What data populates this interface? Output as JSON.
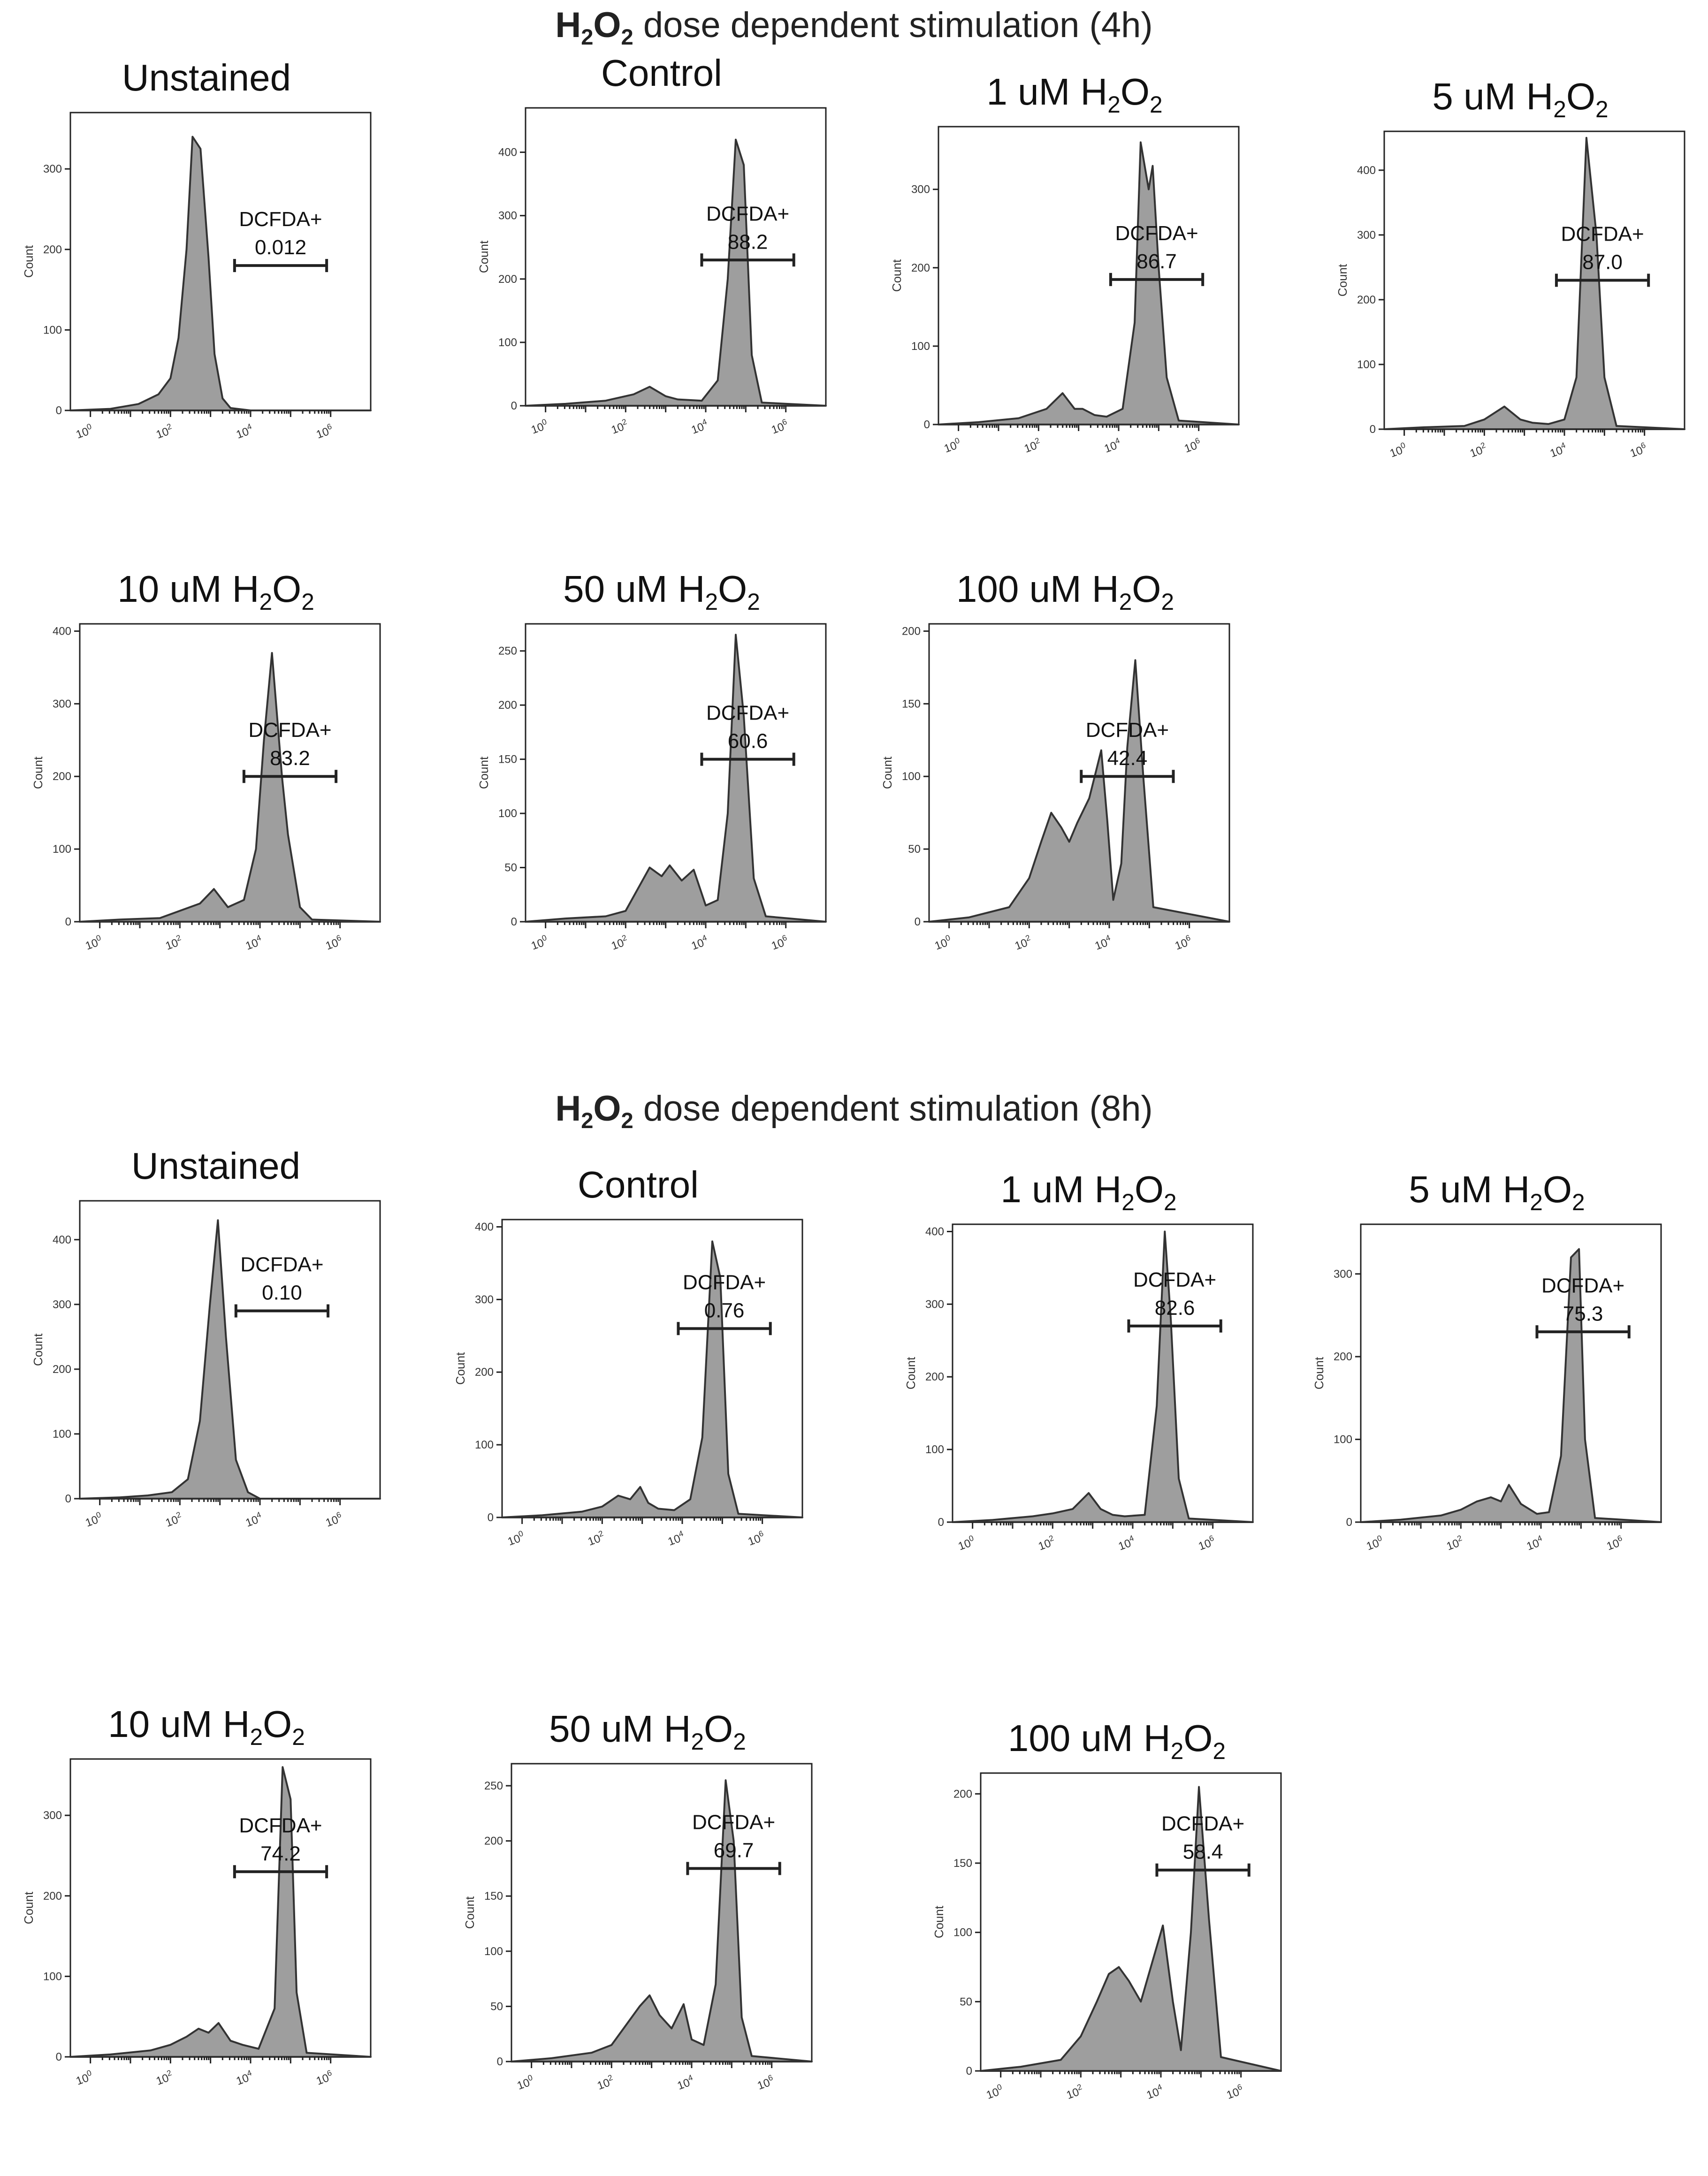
{
  "figure": {
    "sections": [
      {
        "chem_base": "H",
        "chem_sub1": "2",
        "chem_mid": "O",
        "chem_sub2": "2",
        "text": " dose dependent stimulation (4h)"
      },
      {
        "chem_base": "H",
        "chem_sub1": "2",
        "chem_mid": "O",
        "chem_sub2": "2",
        "text": " dose dependent stimulation (8h)"
      }
    ]
  },
  "chart_data": [
    {
      "type": "area",
      "title": "Unstained",
      "section": 0,
      "ylabel": "Count",
      "ylim": [
        0,
        370
      ],
      "yticks": [
        0,
        100,
        200,
        300
      ],
      "xlim": [
        -0.5,
        7
      ],
      "xticks": [
        0,
        2,
        4,
        6
      ],
      "xtick_base": "10",
      "gate": {
        "label": "DCFDA+",
        "value": "0.012",
        "from": 3.6,
        "to": 5.9,
        "level": 180
      },
      "x": [
        -0.5,
        0.5,
        1.2,
        1.7,
        2.0,
        2.2,
        2.4,
        2.55,
        2.75,
        2.95,
        3.1,
        3.3,
        3.5,
        4.0,
        7.0
      ],
      "y": [
        0,
        2,
        8,
        20,
        40,
        90,
        200,
        340,
        325,
        190,
        70,
        15,
        3,
        0,
        0
      ]
    },
    {
      "type": "area",
      "title": "Control",
      "section": 0,
      "ylabel": "Count",
      "ylim": [
        0,
        470
      ],
      "yticks": [
        0,
        100,
        200,
        300,
        400
      ],
      "xlim": [
        -0.5,
        7
      ],
      "xticks": [
        0,
        2,
        4,
        6
      ],
      "xtick_base": "10",
      "gate": {
        "label": "DCFDA+",
        "value": "88.2",
        "from": 3.9,
        "to": 6.2,
        "level": 230
      },
      "x": [
        -0.5,
        0.5,
        1.5,
        2.2,
        2.6,
        3.0,
        3.3,
        3.9,
        4.3,
        4.55,
        4.75,
        4.95,
        5.15,
        5.4,
        7.0
      ],
      "y": [
        0,
        3,
        8,
        18,
        30,
        15,
        10,
        8,
        40,
        200,
        420,
        380,
        80,
        5,
        0
      ]
    },
    {
      "type": "area",
      "title": "1 uM",
      "title_chem": true,
      "section": 0,
      "ylabel": "Count",
      "ylim": [
        0,
        380
      ],
      "yticks": [
        0,
        100,
        200,
        300
      ],
      "xlim": [
        -0.5,
        7
      ],
      "xticks": [
        0,
        2,
        4,
        6
      ],
      "xtick_base": "10",
      "gate": {
        "label": "DCFDA+",
        "value": "86.7",
        "from": 3.8,
        "to": 6.1,
        "level": 185
      },
      "x": [
        -0.5,
        0.5,
        1.5,
        2.2,
        2.6,
        2.9,
        3.1,
        3.4,
        3.7,
        4.1,
        4.4,
        4.55,
        4.75,
        4.85,
        5.0,
        5.2,
        5.5,
        7.0
      ],
      "y": [
        0,
        3,
        8,
        20,
        40,
        20,
        20,
        12,
        10,
        20,
        130,
        360,
        300,
        330,
        200,
        60,
        5,
        0
      ]
    },
    {
      "type": "area",
      "title": "5 uM",
      "title_chem": true,
      "section": 0,
      "ylabel": "Count",
      "ylim": [
        0,
        460
      ],
      "yticks": [
        0,
        100,
        200,
        300,
        400
      ],
      "xlim": [
        -0.5,
        7
      ],
      "xticks": [
        0,
        2,
        4,
        6
      ],
      "xtick_base": "10",
      "gate": {
        "label": "DCFDA+",
        "value": "87.0",
        "from": 3.8,
        "to": 6.1,
        "level": 230
      },
      "x": [
        -0.5,
        0.5,
        1.5,
        2.0,
        2.5,
        2.9,
        3.2,
        3.6,
        4.0,
        4.3,
        4.55,
        4.8,
        5.0,
        5.3,
        7.0
      ],
      "y": [
        0,
        3,
        5,
        15,
        35,
        15,
        10,
        8,
        15,
        80,
        450,
        300,
        80,
        5,
        0
      ]
    },
    {
      "type": "area",
      "title": "10 uM",
      "title_chem": true,
      "section": 0,
      "ylabel": "Count",
      "ylim": [
        0,
        410
      ],
      "yticks": [
        0,
        100,
        200,
        300,
        400
      ],
      "xlim": [
        -0.5,
        7
      ],
      "xticks": [
        0,
        2,
        4,
        6
      ],
      "xtick_base": "10",
      "gate": {
        "label": "DCFDA+",
        "value": "83.2",
        "from": 3.6,
        "to": 5.9,
        "level": 200
      },
      "x": [
        -0.5,
        0.5,
        1.5,
        2.0,
        2.5,
        2.85,
        3.2,
        3.6,
        3.9,
        4.1,
        4.3,
        4.55,
        4.7,
        5.0,
        5.3,
        7.0
      ],
      "y": [
        0,
        3,
        5,
        15,
        25,
        45,
        20,
        30,
        100,
        250,
        370,
        200,
        120,
        20,
        3,
        0
      ]
    },
    {
      "type": "area",
      "title": "50 uM",
      "title_chem": true,
      "section": 0,
      "ylabel": "Count",
      "ylim": [
        0,
        275
      ],
      "yticks": [
        0,
        50,
        100,
        150,
        200,
        250
      ],
      "xlim": [
        -0.5,
        7
      ],
      "xticks": [
        0,
        2,
        4,
        6
      ],
      "xtick_base": "10",
      "gate": {
        "label": "DCFDA+",
        "value": "60.6",
        "from": 3.9,
        "to": 6.2,
        "level": 150
      },
      "x": [
        -0.5,
        0.5,
        1.5,
        2.0,
        2.3,
        2.6,
        2.9,
        3.1,
        3.4,
        3.7,
        4.0,
        4.3,
        4.55,
        4.75,
        4.95,
        5.2,
        5.5,
        7.0
      ],
      "y": [
        0,
        3,
        5,
        10,
        30,
        50,
        42,
        52,
        38,
        48,
        15,
        20,
        100,
        265,
        190,
        40,
        5,
        0
      ]
    },
    {
      "type": "area",
      "title": "100 uM",
      "title_chem": true,
      "section": 0,
      "ylabel": "Count",
      "ylim": [
        0,
        205
      ],
      "yticks": [
        0,
        50,
        100,
        150,
        200
      ],
      "xlim": [
        -0.5,
        7
      ],
      "xticks": [
        0,
        2,
        4,
        6
      ],
      "xtick_base": "10",
      "gate": {
        "label": "DCFDA+",
        "value": "42.4",
        "from": 3.3,
        "to": 5.6,
        "level": 100
      },
      "x": [
        -0.5,
        0.5,
        1.5,
        2.0,
        2.3,
        2.55,
        2.8,
        3.0,
        3.2,
        3.5,
        3.8,
        3.95,
        4.1,
        4.3,
        4.45,
        4.65,
        4.85,
        5.1,
        7.0
      ],
      "y": [
        0,
        3,
        10,
        30,
        55,
        75,
        65,
        55,
        68,
        85,
        118,
        70,
        15,
        40,
        120,
        180,
        100,
        10,
        0
      ]
    },
    {
      "type": "area",
      "title": "Unstained",
      "section": 1,
      "ylabel": "Count",
      "ylim": [
        0,
        460
      ],
      "yticks": [
        0,
        100,
        200,
        300,
        400
      ],
      "xlim": [
        -0.5,
        7
      ],
      "xticks": [
        0,
        2,
        4,
        6
      ],
      "xtick_base": "10",
      "gate": {
        "label": "DCFDA+",
        "value": "0.10",
        "from": 3.4,
        "to": 5.7,
        "level": 290
      },
      "x": [
        -0.5,
        0.5,
        1.2,
        1.8,
        2.2,
        2.5,
        2.75,
        2.95,
        3.15,
        3.4,
        3.7,
        4.0,
        7.0
      ],
      "y": [
        0,
        2,
        5,
        10,
        30,
        120,
        300,
        430,
        250,
        60,
        10,
        0,
        0
      ]
    },
    {
      "type": "area",
      "title": "Control",
      "section": 1,
      "ylabel": "Count",
      "ylim": [
        0,
        410
      ],
      "yticks": [
        0,
        100,
        200,
        300,
        400
      ],
      "xlim": [
        -0.5,
        7
      ],
      "xticks": [
        0,
        2,
        4,
        6
      ],
      "xtick_base": "10",
      "gate": {
        "label": "DCFDA+",
        "value": "0.76",
        "from": 3.9,
        "to": 6.2,
        "level": 260
      },
      "x": [
        -0.5,
        0.5,
        1.5,
        2.0,
        2.4,
        2.7,
        2.95,
        3.15,
        3.4,
        3.8,
        4.2,
        4.5,
        4.75,
        4.95,
        5.15,
        5.4,
        7.0
      ],
      "y": [
        0,
        3,
        8,
        15,
        30,
        25,
        42,
        20,
        12,
        10,
        25,
        110,
        380,
        330,
        60,
        5,
        0
      ]
    },
    {
      "type": "area",
      "title": "1 uM",
      "title_chem": true,
      "section": 1,
      "ylabel": "Count",
      "ylim": [
        0,
        410
      ],
      "yticks": [
        0,
        100,
        200,
        300,
        400
      ],
      "xlim": [
        -0.5,
        7
      ],
      "xticks": [
        0,
        2,
        4,
        6
      ],
      "xtick_base": "10",
      "gate": {
        "label": "DCFDA+",
        "value": "82.6",
        "from": 3.9,
        "to": 6.2,
        "level": 270
      },
      "x": [
        -0.5,
        0.5,
        1.5,
        2.0,
        2.5,
        2.9,
        3.2,
        3.5,
        3.8,
        4.3,
        4.6,
        4.8,
        4.95,
        5.15,
        5.4,
        7.0
      ],
      "y": [
        0,
        3,
        8,
        12,
        18,
        40,
        18,
        10,
        8,
        10,
        160,
        400,
        280,
        60,
        5,
        0
      ]
    },
    {
      "type": "area",
      "title": "5 uM",
      "title_chem": true,
      "section": 1,
      "ylabel": "Count",
      "ylim": [
        0,
        360
      ],
      "yticks": [
        0,
        100,
        200,
        300
      ],
      "xlim": [
        -0.5,
        7
      ],
      "xticks": [
        0,
        2,
        4,
        6
      ],
      "xtick_base": "10",
      "gate": {
        "label": "DCFDA+",
        "value": "75.3",
        "from": 3.9,
        "to": 6.2,
        "level": 230
      },
      "x": [
        -0.5,
        0.5,
        1.5,
        2.0,
        2.4,
        2.75,
        3.0,
        3.2,
        3.5,
        3.9,
        4.2,
        4.5,
        4.75,
        4.95,
        5.1,
        5.35,
        7.0
      ],
      "y": [
        0,
        3,
        8,
        15,
        25,
        30,
        25,
        45,
        22,
        10,
        12,
        80,
        320,
        330,
        100,
        5,
        0
      ]
    },
    {
      "type": "area",
      "title": "10 uM",
      "title_chem": true,
      "section": 1,
      "ylabel": "Count",
      "ylim": [
        0,
        370
      ],
      "yticks": [
        0,
        100,
        200,
        300
      ],
      "xlim": [
        -0.5,
        7
      ],
      "xticks": [
        0,
        2,
        4,
        6
      ],
      "xtick_base": "10",
      "gate": {
        "label": "DCFDA+",
        "value": "74.2",
        "from": 3.6,
        "to": 5.9,
        "level": 230
      },
      "x": [
        -0.5,
        0.5,
        1.5,
        2.0,
        2.4,
        2.7,
        2.95,
        3.2,
        3.5,
        3.8,
        4.2,
        4.6,
        4.8,
        5.0,
        5.15,
        5.4,
        7.0
      ],
      "y": [
        0,
        3,
        8,
        15,
        25,
        35,
        30,
        42,
        20,
        15,
        10,
        60,
        360,
        320,
        80,
        5,
        0
      ]
    },
    {
      "type": "area",
      "title": "50 uM",
      "title_chem": true,
      "section": 1,
      "ylabel": "Count",
      "ylim": [
        0,
        270
      ],
      "yticks": [
        0,
        50,
        100,
        150,
        200,
        250
      ],
      "xlim": [
        -0.5,
        7
      ],
      "xticks": [
        0,
        2,
        4,
        6
      ],
      "xtick_base": "10",
      "gate": {
        "label": "DCFDA+",
        "value": "69.7",
        "from": 3.9,
        "to": 6.2,
        "level": 175
      },
      "x": [
        -0.5,
        0.5,
        1.5,
        2.0,
        2.4,
        2.7,
        2.95,
        3.2,
        3.5,
        3.8,
        4.0,
        4.3,
        4.6,
        4.85,
        5.05,
        5.25,
        5.5,
        7.0
      ],
      "y": [
        0,
        3,
        8,
        15,
        35,
        50,
        60,
        42,
        30,
        52,
        20,
        15,
        70,
        255,
        200,
        40,
        5,
        0
      ]
    },
    {
      "type": "area",
      "title": "100 uM",
      "title_chem": true,
      "section": 1,
      "ylabel": "Count",
      "ylim": [
        0,
        215
      ],
      "yticks": [
        0,
        50,
        100,
        150,
        200
      ],
      "xlim": [
        -0.5,
        7
      ],
      "xticks": [
        0,
        2,
        4,
        6
      ],
      "xtick_base": "10",
      "gate": {
        "label": "DCFDA+",
        "value": "58.4",
        "from": 3.9,
        "to": 6.2,
        "level": 145
      },
      "x": [
        -0.5,
        0.5,
        1.5,
        2.0,
        2.4,
        2.7,
        2.95,
        3.2,
        3.5,
        3.8,
        4.05,
        4.3,
        4.5,
        4.75,
        4.95,
        5.2,
        5.5,
        7.0
      ],
      "y": [
        0,
        3,
        8,
        25,
        50,
        70,
        75,
        65,
        50,
        80,
        105,
        50,
        15,
        100,
        205,
        110,
        10,
        0
      ]
    }
  ]
}
